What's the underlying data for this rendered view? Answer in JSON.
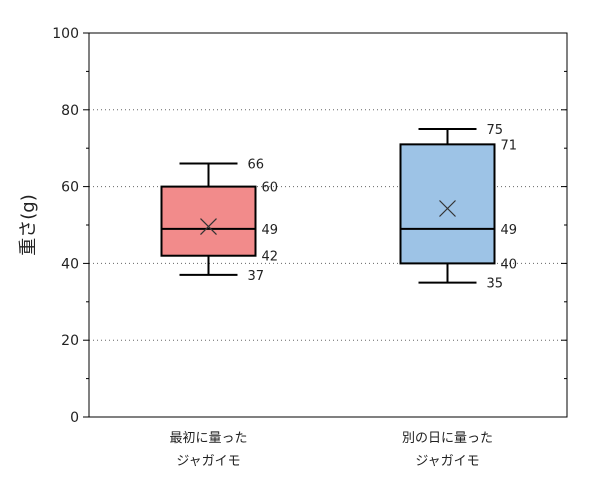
{
  "chart_data": {
    "type": "box",
    "ylabel": "重さ(g)",
    "ylim": [
      0,
      100
    ],
    "yticks": [
      0,
      20,
      40,
      60,
      80,
      100
    ],
    "grid": "horizontal-dotted",
    "categories": [
      {
        "line1": "最初に量った",
        "line2": "ジャガイモ"
      },
      {
        "line1": "別の日に量った",
        "line2": "ジャガイモ"
      }
    ],
    "series": [
      {
        "min": 37,
        "q1": 42,
        "median": 49,
        "q3": 60,
        "max": 66,
        "mean": 49.6,
        "color": "#F28B8B"
      },
      {
        "min": 35,
        "q1": 40,
        "median": 49,
        "q3": 71,
        "max": 75,
        "mean": 54.3,
        "color": "#9DC3E6"
      }
    ]
  }
}
